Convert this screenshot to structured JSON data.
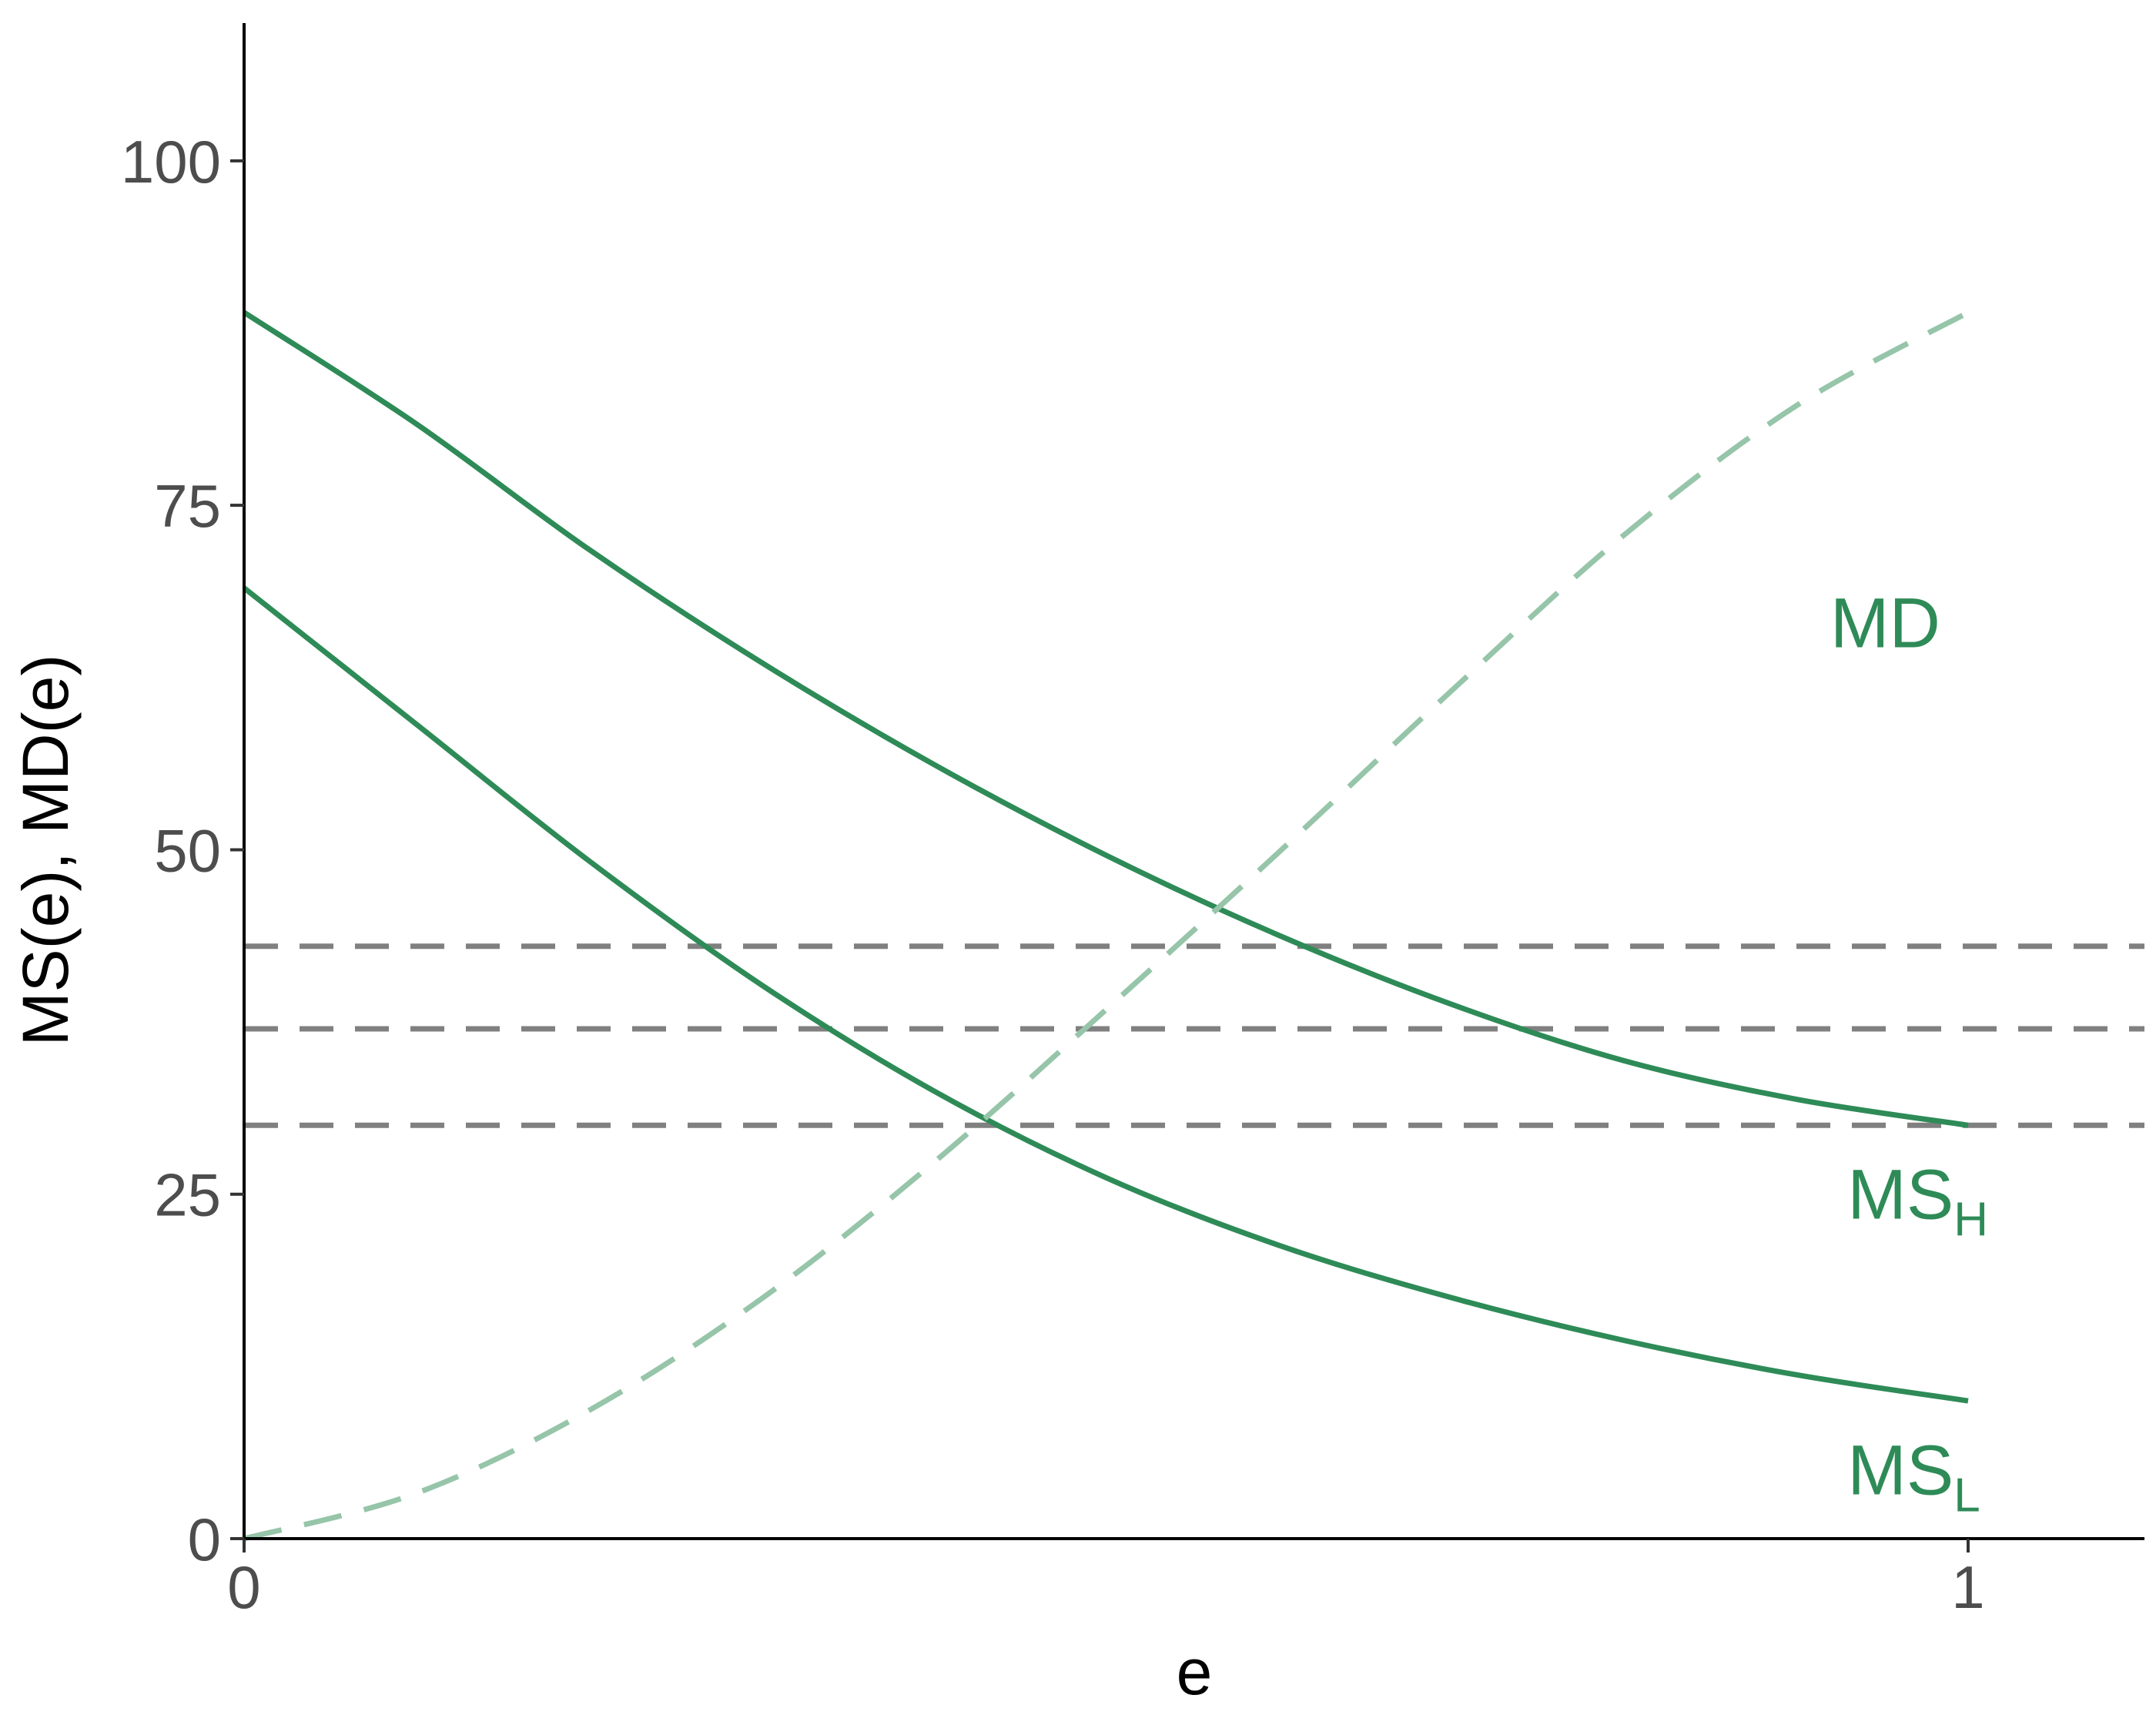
{
  "chart_data": {
    "type": "line",
    "xlabel": "e",
    "ylabel": "MS(e), MD(e)",
    "xlim": [
      0,
      1.1
    ],
    "ylim": [
      0,
      110
    ],
    "x_ticks": [
      0,
      1
    ],
    "x_tick_labels": [
      "0",
      "1"
    ],
    "y_ticks": [
      0,
      25,
      50,
      75,
      100
    ],
    "y_tick_labels": [
      "0",
      "25",
      "50",
      "75",
      "100"
    ],
    "grid": false,
    "legend": "none",
    "x": [
      0,
      0.1,
      0.2,
      0.3,
      0.4,
      0.5,
      0.6,
      0.7,
      0.8,
      0.9,
      1
    ],
    "series": [
      {
        "name": "MS",
        "subscript": "H",
        "style": "solid",
        "color": "#2e8b57",
        "values": [
          89,
          80.9,
          71.8,
          63.6,
          56.2,
          49.6,
          43.8,
          38.8,
          34.7,
          31.9,
          30
        ],
        "label_at": [
          0.93,
          25
        ]
      },
      {
        "name": "MS",
        "subscript": "L",
        "style": "solid",
        "color": "#2e8b57",
        "values": [
          69,
          59.1,
          49.2,
          40.2,
          32.5,
          26.2,
          21.3,
          17.5,
          14.4,
          11.9,
          10
        ],
        "label_at": [
          0.93,
          5
        ]
      },
      {
        "name": "MD",
        "style": "dashed",
        "color": "#96c5a9",
        "values": [
          0,
          3.3,
          9.3,
          17.4,
          27.3,
          38.4,
          49.8,
          61.5,
          72.8,
          82.2,
          89
        ],
        "label_at": [
          0.92,
          66.5
        ]
      }
    ],
    "hlines": [
      {
        "y": 43,
        "style": "dashed",
        "color": "#808080"
      },
      {
        "y": 37,
        "style": "dashed",
        "color": "#808080"
      },
      {
        "y": 30,
        "style": "dashed",
        "color": "#808080"
      }
    ]
  }
}
